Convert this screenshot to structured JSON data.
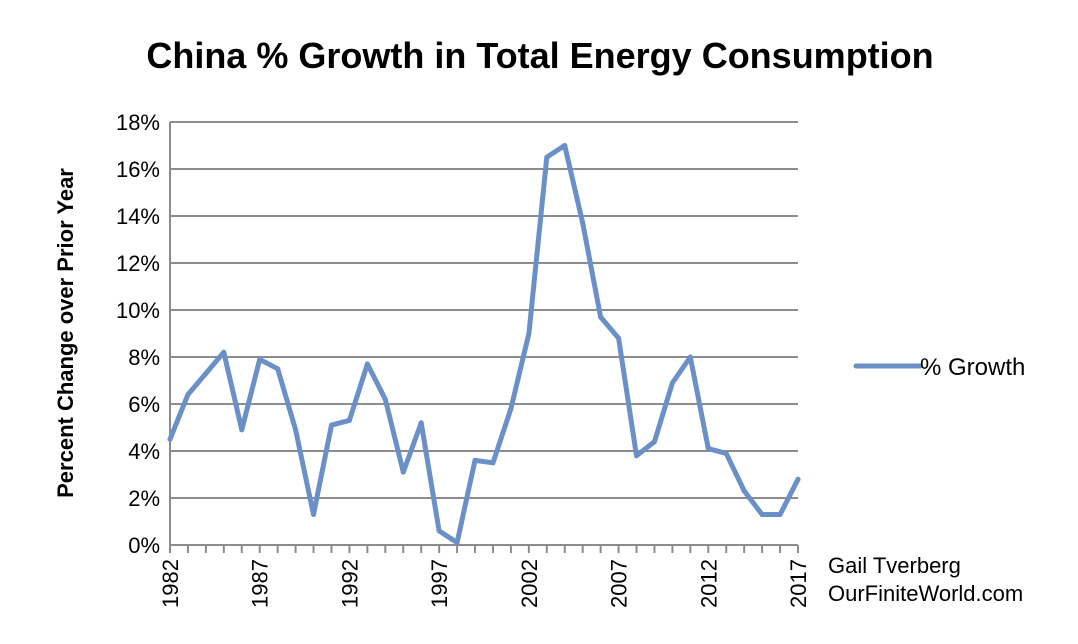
{
  "chart_data": {
    "type": "line",
    "title": "China % Growth in Total Energy Consumption",
    "ylabel": "Percent Change over Prior Year",
    "xlabel": "",
    "ylim": [
      0,
      0.18
    ],
    "yticks": [
      0,
      0.02,
      0.04,
      0.06,
      0.08,
      0.1,
      0.12,
      0.14,
      0.16,
      0.18
    ],
    "ytick_labels": [
      "0%",
      "2%",
      "4%",
      "6%",
      "8%",
      "10%",
      "12%",
      "14%",
      "16%",
      "18%"
    ],
    "xlim": [
      1982,
      2017
    ],
    "xtick_labels": [
      "1982",
      "1987",
      "1992",
      "1997",
      "2002",
      "2007",
      "2012",
      "2017"
    ],
    "grid": true,
    "legend": "right",
    "x": [
      1982,
      1983,
      1984,
      1985,
      1986,
      1987,
      1988,
      1989,
      1990,
      1991,
      1992,
      1993,
      1994,
      1995,
      1996,
      1997,
      1998,
      1999,
      2000,
      2001,
      2002,
      2003,
      2004,
      2005,
      2006,
      2007,
      2008,
      2009,
      2010,
      2011,
      2012,
      2013,
      2014,
      2015,
      2016,
      2017
    ],
    "series": [
      {
        "name": "% Growth",
        "color": "#6b8fc7",
        "values": [
          0.045,
          0.064,
          0.073,
          0.082,
          0.049,
          0.079,
          0.075,
          0.049,
          0.013,
          0.051,
          0.053,
          0.077,
          0.062,
          0.031,
          0.052,
          0.006,
          0.001,
          0.036,
          0.035,
          0.058,
          0.09,
          0.165,
          0.17,
          0.137,
          0.097,
          0.088,
          0.038,
          0.044,
          0.069,
          0.08,
          0.041,
          0.039,
          0.023,
          0.013,
          0.013,
          0.028
        ]
      }
    ]
  },
  "credit": {
    "line1": "Gail Tverberg",
    "line2": "OurFiniteWorld.com"
  }
}
